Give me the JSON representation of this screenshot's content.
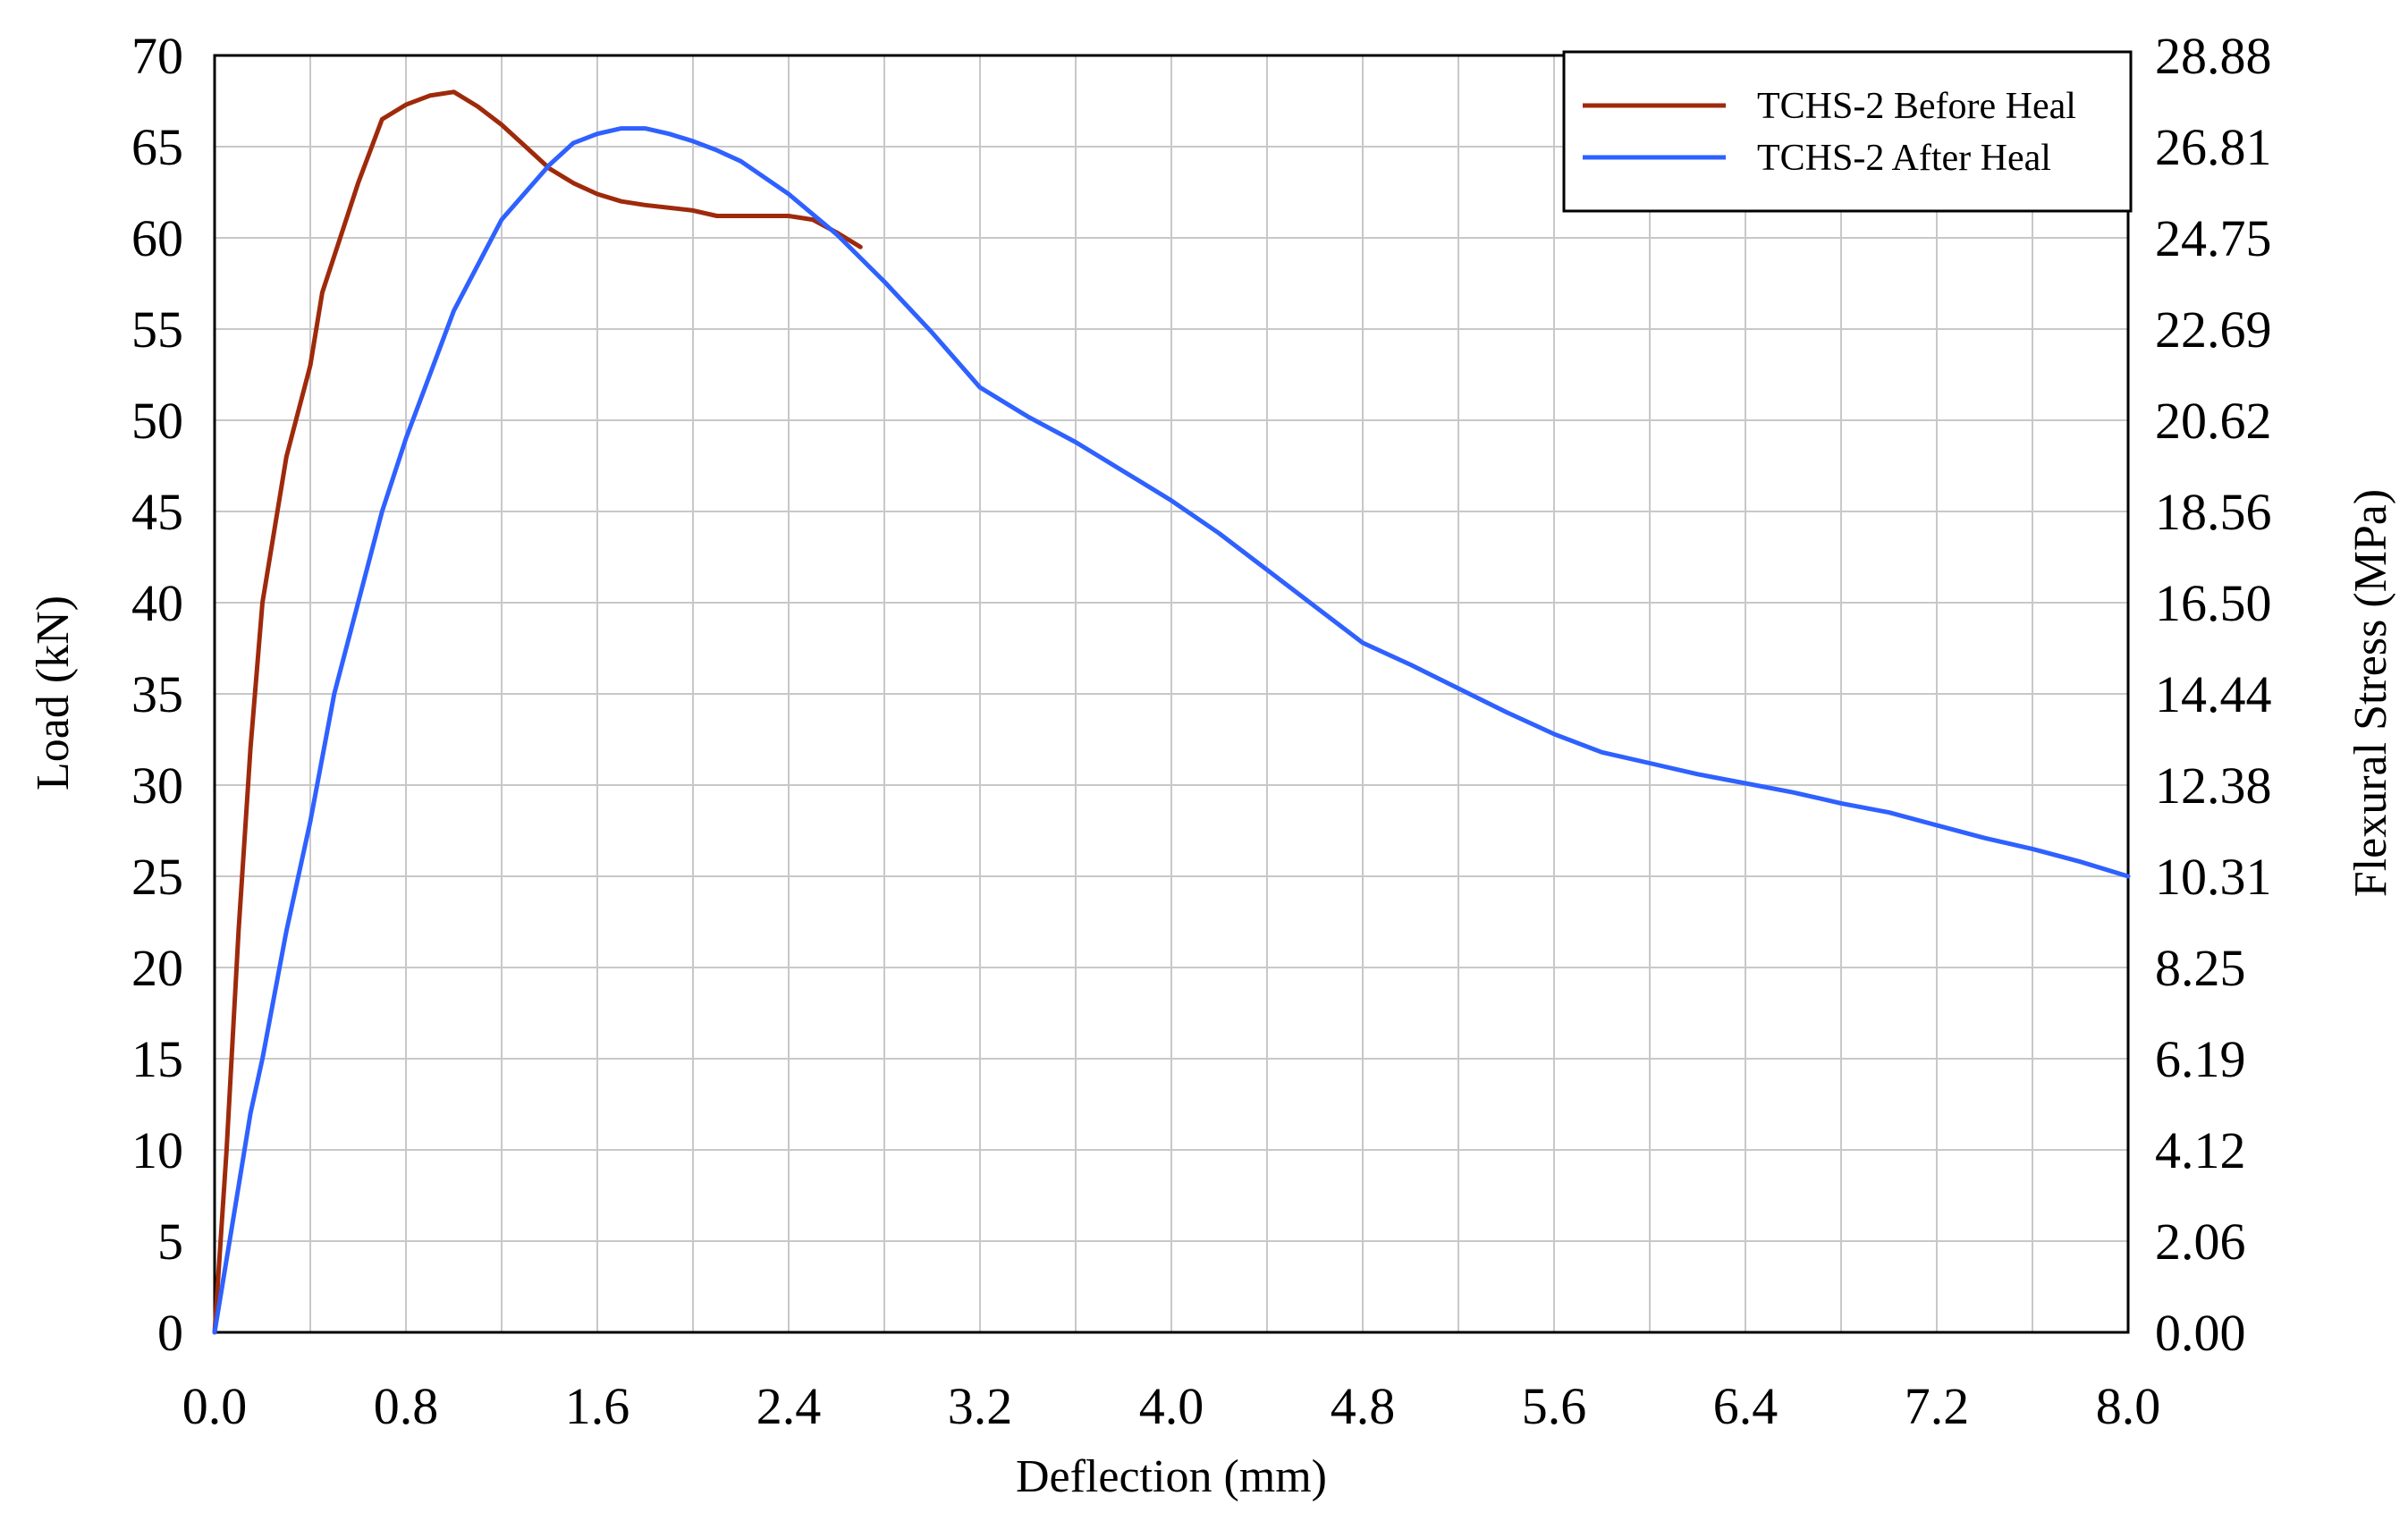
{
  "chart_data": {
    "type": "line",
    "title": "",
    "xlabel": "Deflection (mm)",
    "ylabel": "Load (kN)",
    "y2label": "Flexural Stress (MPa)",
    "xlim": [
      0,
      8
    ],
    "ylim": [
      0,
      70
    ],
    "y2lim": [
      0,
      28.88
    ],
    "x_ticks": [
      "0.0",
      "0.8",
      "1.6",
      "2.4",
      "3.2",
      "4.0",
      "4.8",
      "5.6",
      "6.4",
      "7.2",
      "8.0"
    ],
    "y_ticks": [
      "0",
      "5",
      "10",
      "15",
      "20",
      "25",
      "30",
      "35",
      "40",
      "45",
      "50",
      "55",
      "60",
      "65",
      "70"
    ],
    "y2_ticks": [
      "0.00",
      "2.06",
      "4.12",
      "6.19",
      "8.25",
      "10.31",
      "12.38",
      "14.44",
      "16.50",
      "18.56",
      "20.62",
      "22.69",
      "24.75",
      "26.81",
      "28.88"
    ],
    "grid": true,
    "legend_position": "top-right",
    "series": [
      {
        "name": "TCHS-2 Before Heal",
        "color": "#9E2A0B",
        "x": [
          0.0,
          0.05,
          0.1,
          0.15,
          0.2,
          0.25,
          0.3,
          0.4,
          0.45,
          0.5,
          0.6,
          0.7,
          0.8,
          0.9,
          1.0,
          1.1,
          1.2,
          1.3,
          1.4,
          1.5,
          1.6,
          1.7,
          1.8,
          2.0,
          2.1,
          2.2,
          2.4,
          2.5,
          2.6,
          2.7
        ],
        "y": [
          0.0,
          10.0,
          22.0,
          32.0,
          40.0,
          44.0,
          48.0,
          53.0,
          57.0,
          59.0,
          63.0,
          66.5,
          67.3,
          67.8,
          68.0,
          67.2,
          66.2,
          65.0,
          63.8,
          63.0,
          62.4,
          62.0,
          61.8,
          61.5,
          61.2,
          61.2,
          61.2,
          61.0,
          60.3,
          59.5
        ]
      },
      {
        "name": "TCHS-2 After Heal",
        "color": "#2F61FF",
        "x": [
          0.0,
          0.05,
          0.1,
          0.15,
          0.2,
          0.3,
          0.4,
          0.5,
          0.6,
          0.7,
          0.8,
          1.0,
          1.2,
          1.4,
          1.5,
          1.6,
          1.7,
          1.8,
          1.9,
          2.0,
          2.1,
          2.2,
          2.4,
          2.6,
          2.8,
          3.0,
          3.2,
          3.4,
          3.6,
          3.8,
          4.0,
          4.2,
          4.4,
          4.6,
          4.8,
          5.0,
          5.2,
          5.4,
          5.6,
          5.8,
          6.0,
          6.2,
          6.4,
          6.6,
          6.8,
          7.0,
          7.2,
          7.4,
          7.6,
          7.8,
          8.0
        ],
        "y": [
          0.0,
          4.0,
          8.0,
          12.0,
          15.0,
          22.0,
          28.0,
          35.0,
          40.0,
          45.0,
          49.0,
          56.0,
          61.0,
          64.0,
          65.2,
          65.7,
          66.0,
          66.0,
          65.7,
          65.3,
          64.8,
          64.2,
          62.4,
          60.2,
          57.6,
          54.8,
          51.8,
          50.2,
          48.8,
          47.2,
          45.6,
          43.8,
          41.8,
          39.8,
          37.8,
          36.6,
          35.3,
          34.0,
          32.8,
          31.8,
          31.2,
          30.6,
          30.1,
          29.6,
          29.0,
          28.5,
          27.8,
          27.1,
          26.5,
          25.8,
          25.0
        ]
      }
    ]
  }
}
